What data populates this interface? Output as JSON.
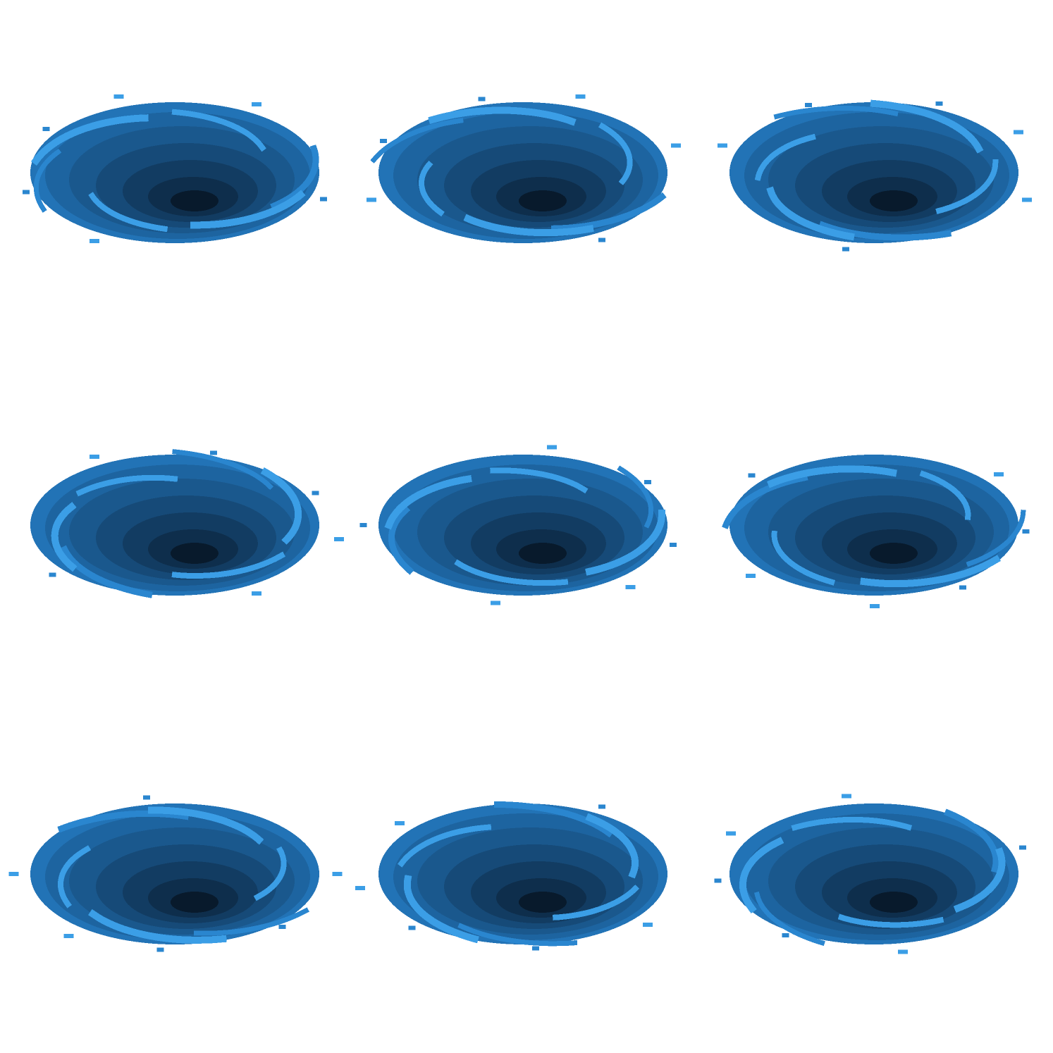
{
  "sprite_sheet": {
    "subject": "whirlpool",
    "rows": 3,
    "columns": 3,
    "frame_count": 9,
    "background_color": "#ffffff",
    "palette": {
      "streak_light": "#3b9ee6",
      "streak_mid": "#2a86cf",
      "rim": "#2273b6",
      "ring_1": "#1d64a0",
      "ring_2": "#1a588d",
      "ring_3": "#164a78",
      "ring_4": "#123c62",
      "ring_5": "#0e2e4c",
      "core": "#081a2c"
    },
    "frames": [
      {
        "id": "frame-1",
        "rotation_deg": 0
      },
      {
        "id": "frame-2",
        "rotation_deg": 40
      },
      {
        "id": "frame-3",
        "rotation_deg": 80
      },
      {
        "id": "frame-4",
        "rotation_deg": 120
      },
      {
        "id": "frame-5",
        "rotation_deg": 160
      },
      {
        "id": "frame-6",
        "rotation_deg": 200
      },
      {
        "id": "frame-7",
        "rotation_deg": 240
      },
      {
        "id": "frame-8",
        "rotation_deg": 280
      },
      {
        "id": "frame-9",
        "rotation_deg": 320
      }
    ]
  }
}
